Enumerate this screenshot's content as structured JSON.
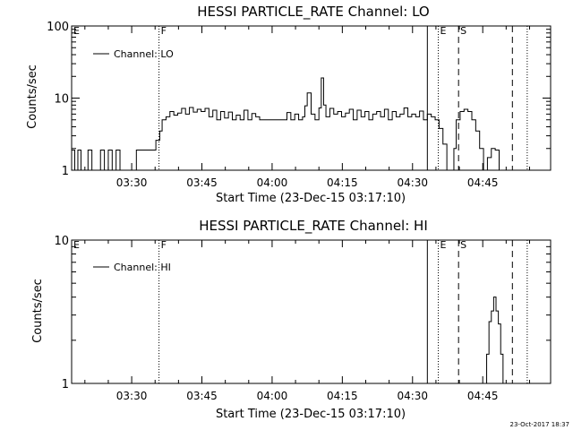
{
  "timestamp": "23-Oct-2017 18:37",
  "chart_data": [
    {
      "type": "line",
      "title": "HESSI PARTICLE_RATE Channel: LO",
      "xlabel": "Start Time (23-Dec-15 03:17:10)",
      "ylabel": "Counts/sec",
      "yscale": "log",
      "xlim": [
        "03:17:10",
        "04:59:30"
      ],
      "ylim": [
        1,
        100
      ],
      "x_ticks": [
        "03:30",
        "03:45",
        "04:00",
        "04:15",
        "04:30",
        "04:45"
      ],
      "y_ticks": [
        "1",
        "10",
        "100"
      ],
      "grid": false,
      "legend_position": "top-left",
      "series": [
        {
          "name": "Channel: LO",
          "x": [
            "03:17:10",
            "03:17:50",
            "03:18:30",
            "03:19:10",
            "03:19:50",
            "03:20:40",
            "03:21:30",
            "03:22:20",
            "03:23:20",
            "03:24:10",
            "03:25:00",
            "03:25:50",
            "03:26:40",
            "03:27:30",
            "03:28:20",
            "03:29:10",
            "03:30:10",
            "03:31:00",
            "03:31:50",
            "03:32:40",
            "03:33:30",
            "03:34:20",
            "03:35:10",
            "03:36:00",
            "03:36:30",
            "03:37:20",
            "03:38:10",
            "03:39:00",
            "03:39:50",
            "03:40:40",
            "03:41:30",
            "03:42:20",
            "03:43:10",
            "03:44:00",
            "03:44:50",
            "03:45:40",
            "03:46:30",
            "03:47:20",
            "03:48:10",
            "03:49:00",
            "03:49:50",
            "03:50:40",
            "03:51:30",
            "03:52:20",
            "03:53:10",
            "03:54:00",
            "03:54:50",
            "03:55:40",
            "03:56:30",
            "03:57:20",
            "03:58:10",
            "03:59:00",
            "03:59:50",
            "04:00:40",
            "04:01:30",
            "04:02:20",
            "04:03:10",
            "04:04:00",
            "04:04:50",
            "04:05:40",
            "04:06:30",
            "04:07:00",
            "04:07:30",
            "04:08:20",
            "04:09:10",
            "04:10:00",
            "04:10:30",
            "04:11:00",
            "04:11:30",
            "04:12:20",
            "04:13:10",
            "04:14:00",
            "04:14:50",
            "04:15:40",
            "04:16:30",
            "04:17:20",
            "04:18:10",
            "04:19:00",
            "04:19:50",
            "04:20:40",
            "04:21:30",
            "04:22:20",
            "04:23:10",
            "04:24:00",
            "04:24:50",
            "04:25:40",
            "04:26:30",
            "04:27:20",
            "04:28:10",
            "04:29:00",
            "04:29:50",
            "04:30:40",
            "04:31:30",
            "04:32:20",
            "04:33:10",
            "04:34:00",
            "04:34:50",
            "04:35:40",
            "04:36:30",
            "04:37:20",
            "04:38:10",
            "04:38:50",
            "04:39:20",
            "04:40:10",
            "04:41:00",
            "04:41:50",
            "04:42:40",
            "04:43:30",
            "04:44:20",
            "04:45:10",
            "04:46:00",
            "04:46:50",
            "04:47:40",
            "04:48:30",
            "04:49:20",
            "04:50:10",
            "04:51:00"
          ],
          "values": [
            1.9,
            1.0,
            1.9,
            1.0,
            1.0,
            1.9,
            1.0,
            1.0,
            1.9,
            1.0,
            1.9,
            1.0,
            1.9,
            1.0,
            1.0,
            1.0,
            1.0,
            1.9,
            1.9,
            1.9,
            1.9,
            1.9,
            2.6,
            3.5,
            5.0,
            5.5,
            6.5,
            5.8,
            6.2,
            7.2,
            6.0,
            7.4,
            6.4,
            7.0,
            6.5,
            7.2,
            5.5,
            6.8,
            5.0,
            6.5,
            5.3,
            6.4,
            5.0,
            5.8,
            5.0,
            6.8,
            5.0,
            6.1,
            5.5,
            5.0,
            5.0,
            5.0,
            5.0,
            5.0,
            5.0,
            5.0,
            6.3,
            5.0,
            6.0,
            5.0,
            5.5,
            7.8,
            11.8,
            6.0,
            5.0,
            7.3,
            19.0,
            8.0,
            5.5,
            7.2,
            6.0,
            6.5,
            5.5,
            6.2,
            7.0,
            5.0,
            6.8,
            5.5,
            6.5,
            5.0,
            6.0,
            6.5,
            5.5,
            7.0,
            5.0,
            6.5,
            5.5,
            6.0,
            7.3,
            5.5,
            6.0,
            5.5,
            6.6,
            5.0,
            6.0,
            5.5,
            5.0,
            3.8,
            2.3,
            1.0,
            1.0,
            2.0,
            5.0,
            6.5,
            7.0,
            6.5,
            5.0,
            3.5,
            2.0,
            1.0,
            1.5,
            2.0,
            1.9,
            1.0,
            1.0,
            1.0,
            1.0
          ]
        }
      ],
      "markers": [
        {
          "label": "E",
          "x": "03:17:10",
          "style": "solid"
        },
        {
          "label": "F",
          "x": "03:35:50",
          "style": "dotted"
        },
        {
          "label": "",
          "x": "04:33:10",
          "style": "solid"
        },
        {
          "label": "E",
          "x": "04:35:30",
          "style": "dotted"
        },
        {
          "label": "S",
          "x": "04:39:50",
          "style": "dashed"
        },
        {
          "label": "",
          "x": "04:51:20",
          "style": "dashed"
        },
        {
          "label": "",
          "x": "04:54:30",
          "style": "dotted"
        }
      ]
    },
    {
      "type": "line",
      "title": "HESSI PARTICLE_RATE Channel: HI",
      "xlabel": "Start Time (23-Dec-15 03:17:10)",
      "ylabel": "Counts/sec",
      "yscale": "log",
      "xlim": [
        "03:17:10",
        "04:59:30"
      ],
      "ylim": [
        1,
        10
      ],
      "x_ticks": [
        "03:30",
        "03:45",
        "04:00",
        "04:15",
        "04:30",
        "04:45"
      ],
      "y_ticks": [
        "1",
        "10"
      ],
      "grid": false,
      "legend_position": "top-left",
      "series": [
        {
          "name": "Channel: HI",
          "x": [
            "04:45:20",
            "04:45:50",
            "04:46:20",
            "04:46:50",
            "04:47:20",
            "04:47:50",
            "04:48:20",
            "04:48:50",
            "04:49:20"
          ],
          "values": [
            1.0,
            1.6,
            2.7,
            3.2,
            4.0,
            3.2,
            2.6,
            1.6,
            1.0
          ]
        }
      ],
      "markers": [
        {
          "label": "E",
          "x": "03:17:10",
          "style": "solid"
        },
        {
          "label": "F",
          "x": "03:35:50",
          "style": "dotted"
        },
        {
          "label": "",
          "x": "04:33:10",
          "style": "solid"
        },
        {
          "label": "E",
          "x": "04:35:30",
          "style": "dotted"
        },
        {
          "label": "S",
          "x": "04:39:50",
          "style": "dashed"
        },
        {
          "label": "",
          "x": "04:51:20",
          "style": "dashed"
        },
        {
          "label": "",
          "x": "04:54:30",
          "style": "dotted"
        }
      ]
    }
  ]
}
